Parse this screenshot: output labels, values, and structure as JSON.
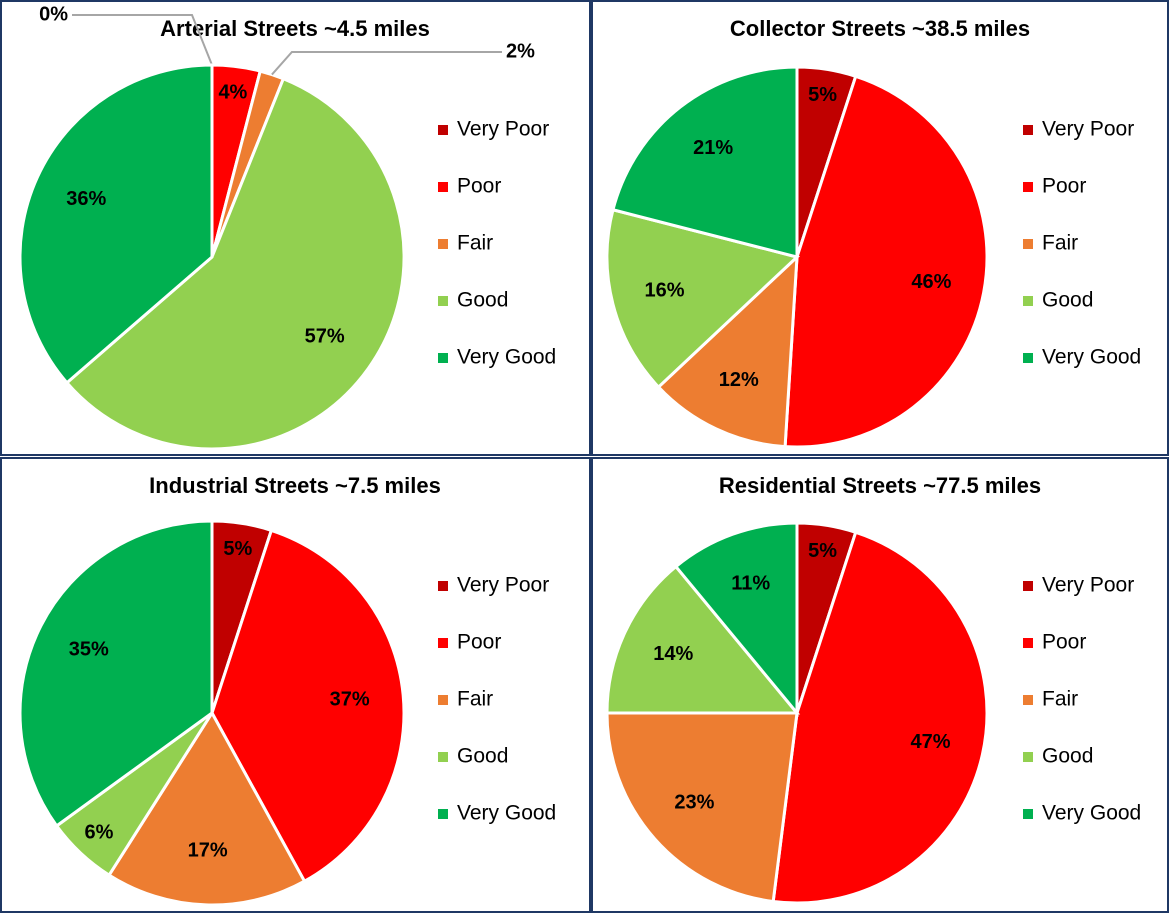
{
  "chart_data": [
    {
      "type": "pie",
      "title": "Arterial Streets ~4.5 miles",
      "categories": [
        "Very Poor",
        "Poor",
        "Fair",
        "Good",
        "Very Good"
      ],
      "values": [
        0,
        4,
        2,
        57,
        36
      ],
      "value_labels": [
        "0%",
        "4%",
        "2%",
        "57%",
        "36%"
      ],
      "colors": [
        "#c00000",
        "#ff0000",
        "#ed7d31",
        "#92d050",
        "#00b050"
      ]
    },
    {
      "type": "pie",
      "title": "Collector Streets ~38.5 miles",
      "categories": [
        "Very Poor",
        "Poor",
        "Fair",
        "Good",
        "Very Good"
      ],
      "values": [
        5,
        46,
        12,
        16,
        21
      ],
      "value_labels": [
        "5%",
        "46%",
        "12%",
        "16%",
        "21%"
      ],
      "colors": [
        "#c00000",
        "#ff0000",
        "#ed7d31",
        "#92d050",
        "#00b050"
      ]
    },
    {
      "type": "pie",
      "title": "Industrial Streets ~7.5 miles",
      "categories": [
        "Very Poor",
        "Poor",
        "Fair",
        "Good",
        "Very Good"
      ],
      "values": [
        5,
        37,
        17,
        6,
        35
      ],
      "value_labels": [
        "5%",
        "37%",
        "17%",
        "6%",
        "35%"
      ],
      "colors": [
        "#c00000",
        "#ff0000",
        "#ed7d31",
        "#92d050",
        "#00b050"
      ]
    },
    {
      "type": "pie",
      "title": "Residential Streets ~77.5 miles",
      "categories": [
        "Very Poor",
        "Poor",
        "Fair",
        "Good",
        "Very Good"
      ],
      "values": [
        5,
        47,
        23,
        14,
        11
      ],
      "value_labels": [
        "5%",
        "47%",
        "23%",
        "14%",
        "11%"
      ],
      "colors": [
        "#c00000",
        "#ff0000",
        "#ed7d31",
        "#92d050",
        "#00b050"
      ]
    }
  ]
}
